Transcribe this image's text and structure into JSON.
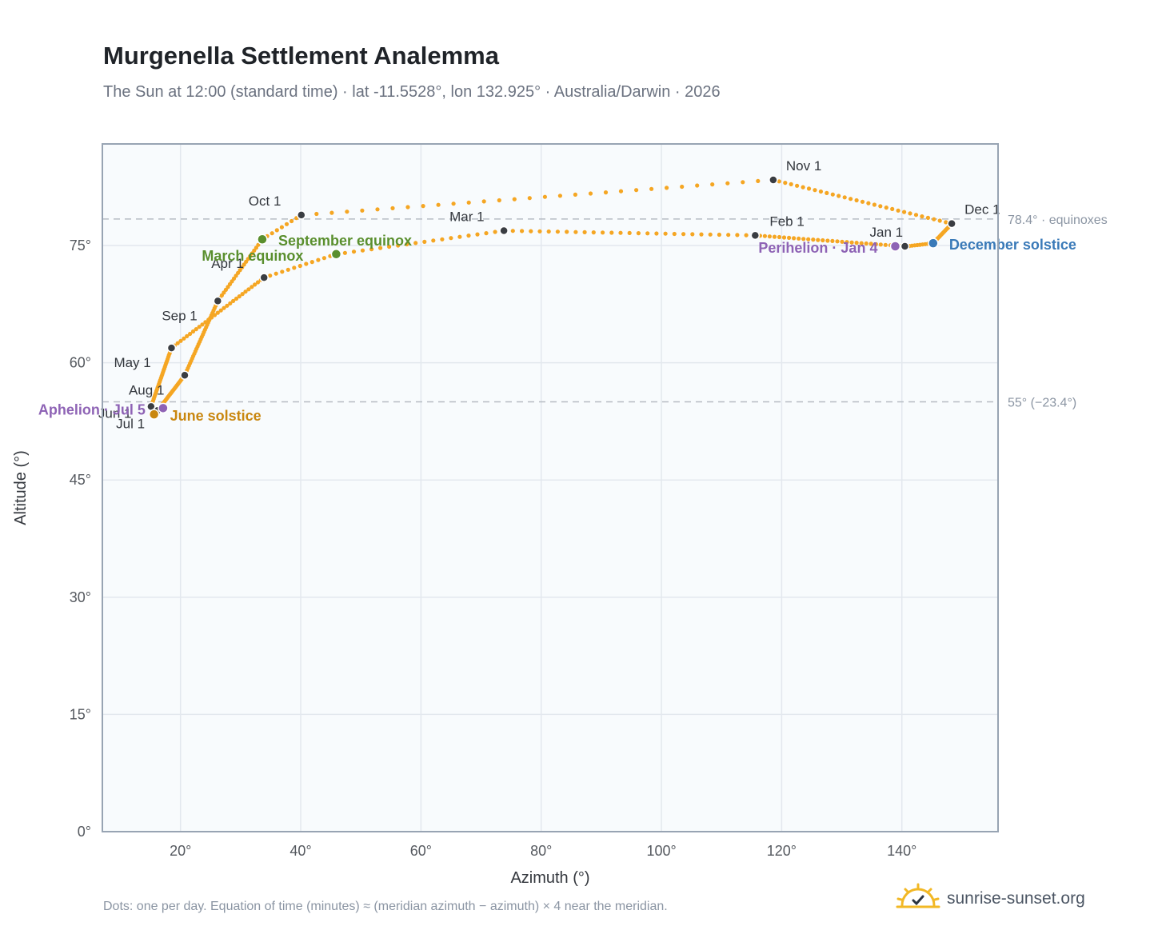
{
  "title": "Murgenella Settlement Analemma",
  "subtitle": "The Sun at 12:00 (standard time) · lat -11.5528°, lon 132.925° · Australia/Darwin · 2026",
  "footnote": "Dots: one per day. Equation of time (minutes) ≈ (meridian azimuth − azimuth) × 4 near the meridian.",
  "brand": {
    "text": "sunrise-sunset.org",
    "icon": "sun-check-icon"
  },
  "colors": {
    "path": "#f5a623",
    "month": "#3a3d42",
    "equinox": "#5a8f2e",
    "june": "#c9870f",
    "december": "#3a7ab8",
    "apsis": "#8e63b5",
    "plot_bg": "#f8fbfd",
    "grid": "#e3e8ee",
    "border": "#98a4b3",
    "refline": "#b6bcc4"
  },
  "chart_data": {
    "type": "scatter",
    "title": "Murgenella Settlement Analemma",
    "xlabel": "Azimuth (°)",
    "ylabel": "Altitude (°)",
    "xlim": [
      7,
      156
    ],
    "ylim": [
      0,
      88
    ],
    "xticks": [
      20,
      40,
      60,
      80,
      100,
      120,
      140
    ],
    "xtick_labels": [
      "20°",
      "40°",
      "60°",
      "80°",
      "100°",
      "120°",
      "140°"
    ],
    "yticks": [
      0,
      15,
      30,
      45,
      60,
      75
    ],
    "ytick_labels": [
      "0°",
      "15°",
      "30°",
      "45°",
      "60°",
      "75°"
    ],
    "grid": true,
    "legend": "none",
    "series": [
      {
        "type": "daily-path",
        "points_per_day": 1,
        "anchors": [
          {
            "date": "01-01",
            "az": 140.5,
            "alt": 74.9
          },
          {
            "date": "02-01",
            "az": 115.6,
            "alt": 76.3
          },
          {
            "date": "03-01",
            "az": 73.8,
            "alt": 76.9
          },
          {
            "date": "03-20",
            "az": 45.9,
            "alt": 73.9
          },
          {
            "date": "04-01",
            "az": 33.9,
            "alt": 70.9
          },
          {
            "date": "05-01",
            "az": 18.5,
            "alt": 61.9
          },
          {
            "date": "06-01",
            "az": 15.1,
            "alt": 54.4
          },
          {
            "date": "06-21",
            "az": 15.6,
            "alt": 53.4
          },
          {
            "date": "07-01",
            "az": 16.2,
            "alt": 53.9
          },
          {
            "date": "08-01",
            "az": 20.7,
            "alt": 58.4
          },
          {
            "date": "09-01",
            "az": 26.2,
            "alt": 67.9
          },
          {
            "date": "09-23",
            "az": 33.6,
            "alt": 75.8
          },
          {
            "date": "10-01",
            "az": 40.1,
            "alt": 78.9
          },
          {
            "date": "11-01",
            "az": 118.6,
            "alt": 83.4
          },
          {
            "date": "12-01",
            "az": 148.3,
            "alt": 77.8
          },
          {
            "date": "12-21",
            "az": 145.2,
            "alt": 75.3
          },
          {
            "date": "12-31",
            "az": 140.8,
            "alt": 74.9
          }
        ]
      }
    ],
    "month_markers": [
      {
        "label": "Jan 1",
        "az": 140.5,
        "alt": 74.9,
        "label_dx": -44,
        "label_dy": -12
      },
      {
        "label": "Feb 1",
        "az": 115.6,
        "alt": 76.3,
        "label_dx": 18,
        "label_dy": -12
      },
      {
        "label": "Mar 1",
        "az": 73.8,
        "alt": 76.9,
        "label_dx": -68,
        "label_dy": -12
      },
      {
        "label": "Apr 1",
        "az": 33.9,
        "alt": 70.9,
        "label_dx": -66,
        "label_dy": -12
      },
      {
        "label": "May 1",
        "az": 18.5,
        "alt": 61.9,
        "label_dx": -72,
        "label_dy": 24
      },
      {
        "label": "Jun 1",
        "az": 15.1,
        "alt": 54.4,
        "label_dx": -66,
        "label_dy": 14
      },
      {
        "label": "Jul 1",
        "az": 16.2,
        "alt": 53.9,
        "label_dx": -52,
        "label_dy": 22
      },
      {
        "label": "Aug 1",
        "az": 20.7,
        "alt": 58.4,
        "label_dx": -70,
        "label_dy": 24
      },
      {
        "label": "Sep 1",
        "az": 26.2,
        "alt": 67.9,
        "label_dx": -70,
        "label_dy": 24
      },
      {
        "label": "Oct 1",
        "az": 40.1,
        "alt": 78.9,
        "label_dx": -66,
        "label_dy": -12
      },
      {
        "label": "Nov 1",
        "az": 118.6,
        "alt": 83.4,
        "label_dx": 16,
        "label_dy": -12
      },
      {
        "label": "Dec 1",
        "az": 148.3,
        "alt": 77.8,
        "label_dx": 16,
        "label_dy": -12
      }
    ],
    "events": [
      {
        "label": "March equinox",
        "kind": "equinox",
        "az": 45.9,
        "alt": 73.9,
        "label_dx": -168,
        "label_dy": 8,
        "anchor": "start"
      },
      {
        "label": "September equinox",
        "kind": "equinox",
        "az": 33.6,
        "alt": 75.8,
        "label_dx": 20,
        "label_dy": 8,
        "anchor": "start"
      },
      {
        "label": "June solstice",
        "kind": "june",
        "az": 15.6,
        "alt": 53.4,
        "label_dx": 20,
        "label_dy": 8,
        "anchor": "start"
      },
      {
        "label": "December solstice",
        "kind": "december",
        "az": 145.2,
        "alt": 75.3,
        "label_dx": 20,
        "label_dy": 8,
        "anchor": "start"
      },
      {
        "label": "Aphelion · Jul 5",
        "kind": "apsis",
        "az": 17.1,
        "alt": 54.2,
        "label_dx": -22,
        "label_dy": 8,
        "anchor": "end"
      },
      {
        "label": "Perihelion · Jan 4",
        "kind": "apsis",
        "az": 138.9,
        "alt": 74.9,
        "label_dx": -22,
        "label_dy": 8,
        "anchor": "end"
      }
    ],
    "reference_lines": [
      {
        "label": "78.4° · equinoxes",
        "alt": 78.4
      },
      {
        "label": "55° (−23.4°)",
        "alt": 55
      }
    ]
  }
}
